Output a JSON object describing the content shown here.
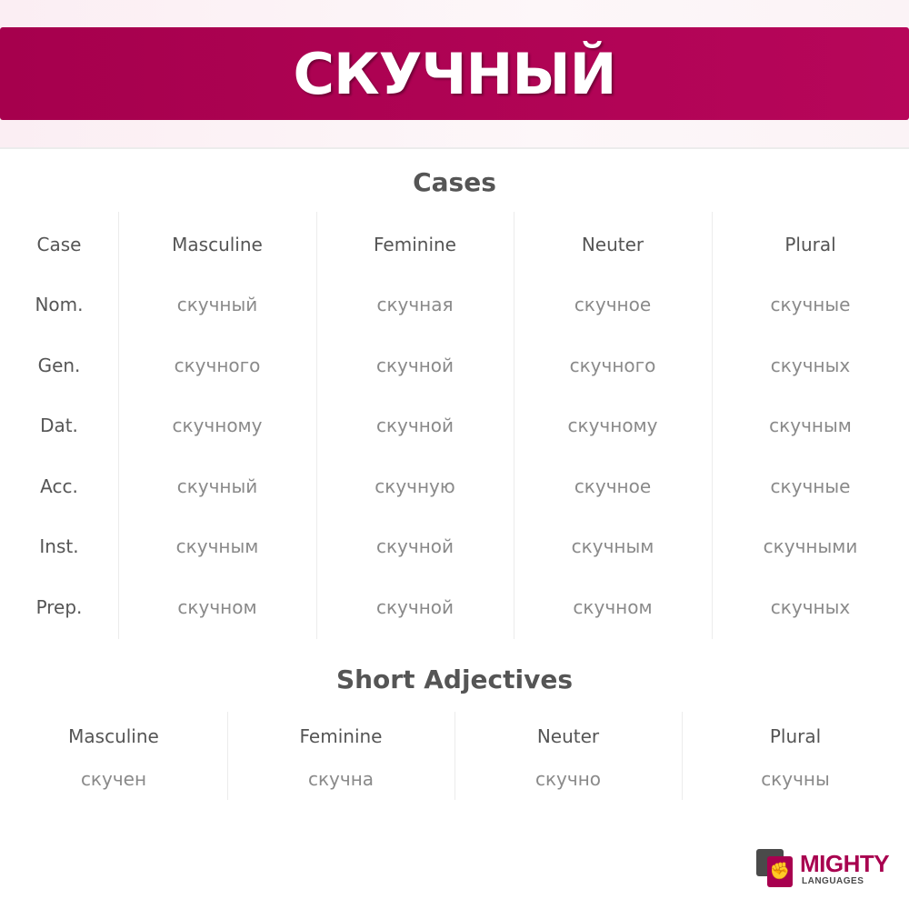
{
  "title": "СКУЧНЫЙ",
  "cases": {
    "heading": "Cases",
    "columns": [
      "Case",
      "Masculine",
      "Feminine",
      "Neuter",
      "Plural"
    ],
    "rows": [
      [
        "Nom.",
        "скучный",
        "скучная",
        "скучное",
        "скучные"
      ],
      [
        "Gen.",
        "скучного",
        "скучной",
        "скучного",
        "скучных"
      ],
      [
        "Dat.",
        "скучному",
        "скучной",
        "скучному",
        "скучным"
      ],
      [
        "Acc.",
        "скучный",
        "скучную",
        "скучное",
        "скучные"
      ],
      [
        "Inst.",
        "скучным",
        "скучной",
        "скучным",
        "скучными"
      ],
      [
        "Prep.",
        "скучном",
        "скучной",
        "скучном",
        "скучных"
      ]
    ]
  },
  "short": {
    "heading": "Short Adjectives",
    "columns": [
      "Masculine",
      "Feminine",
      "Neuter",
      "Plural"
    ],
    "values": [
      "скучен",
      "скучна",
      "скучно",
      "скучны"
    ]
  },
  "logo": {
    "line1": "MIGHTY",
    "line2": "LANGUAGES"
  },
  "colors": {
    "accent": "#a8004f",
    "heading": "#555555",
    "value": "#8a8a8a"
  }
}
